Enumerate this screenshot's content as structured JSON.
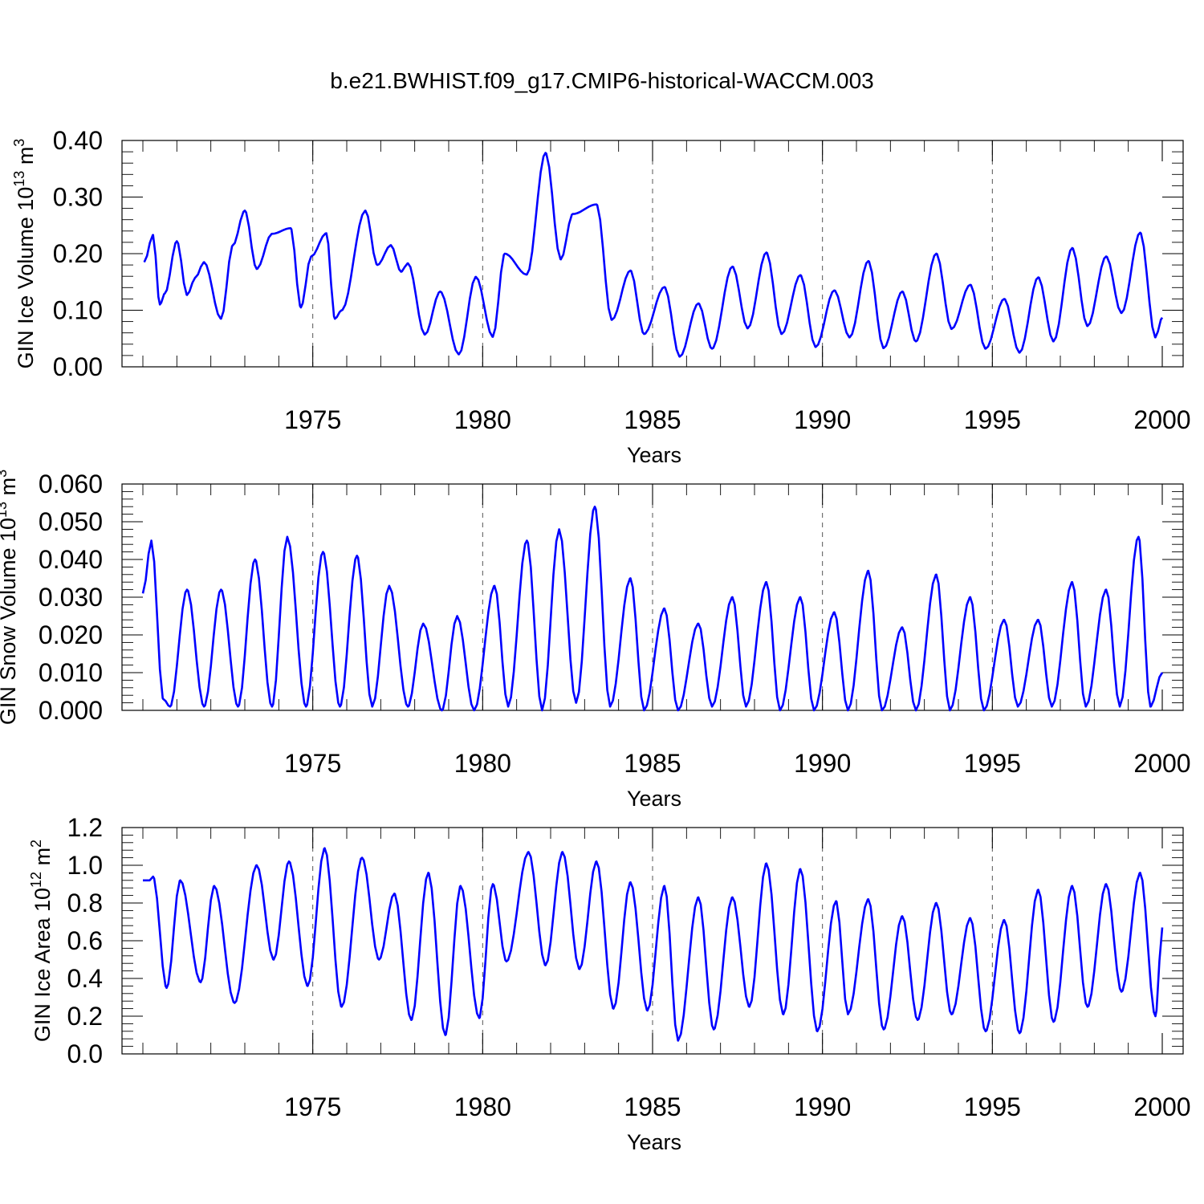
{
  "figure_title": "b.e21.BWHIST.f09_g17.CMIP6-historical-WACCM.003",
  "colors": {
    "series": "#0000ff",
    "grid": "#555555",
    "axes": "#000000"
  },
  "chart_data": [
    {
      "type": "line",
      "title": "b.e21.BWHIST.f09_g17.CMIP6-historical-WACCM.003",
      "xlabel": "Years",
      "ylabel": "GIN Ice Volume 10",
      "ylabel_exp": "13",
      "ylabel_unit": " m",
      "ylabel_unit_exp": "3",
      "xlim": [
        1970.0,
        2000.0
      ],
      "ylim": [
        0.0,
        0.4
      ],
      "x_ticks": [
        1975,
        1980,
        1985,
        1990,
        1995,
        2000
      ],
      "x_tick_labels": [
        "1975",
        "1980",
        "1985",
        "1990",
        "1995",
        "2000"
      ],
      "y_ticks": [
        0.0,
        0.1,
        0.2,
        0.3,
        0.4
      ],
      "y_tick_labels": [
        "0.00",
        "0.10",
        "0.20",
        "0.30",
        "0.40"
      ],
      "y_minor_step": 0.02,
      "grid": "dashed vertical lines at major x ticks",
      "series": [
        {
          "name": "GIN Ice Volume",
          "anchors_x": [
            1970.04,
            1970.3,
            1970.5,
            1970.65,
            1971.0,
            1971.3,
            1971.55,
            1971.8,
            1972.3,
            1972.65,
            1973.0,
            1973.35,
            1973.8,
            1974.35,
            1974.65,
            1974.95,
            1975.4,
            1975.65,
            1975.85,
            1976.55,
            1976.9,
            1977.3,
            1977.6,
            1977.8,
            1978.3,
            1978.75,
            1979.3,
            1979.8,
            1980.3,
            1980.65,
            1981.3,
            1981.85,
            1982.3,
            1982.65,
            1983.35,
            1983.8,
            1984.35,
            1984.75,
            1985.35,
            1985.8,
            1986.35,
            1986.75,
            1987.35,
            1987.8,
            1988.35,
            1988.8,
            1989.35,
            1989.8,
            1990.35,
            1990.8,
            1991.35,
            1991.8,
            1992.35,
            1992.75,
            1993.35,
            1993.8,
            1994.35,
            1994.8,
            1995.35,
            1995.8,
            1996.35,
            1996.8,
            1997.35,
            1997.8,
            1998.35,
            1998.8,
            1999.35,
            1999.8,
            2000.0
          ],
          "anchors_y": [
            0.185,
            0.233,
            0.11,
            0.13,
            0.222,
            0.127,
            0.158,
            0.185,
            0.085,
            0.215,
            0.276,
            0.173,
            0.235,
            0.245,
            0.105,
            0.195,
            0.236,
            0.085,
            0.1,
            0.276,
            0.18,
            0.215,
            0.168,
            0.183,
            0.057,
            0.133,
            0.022,
            0.159,
            0.053,
            0.2,
            0.163,
            0.378,
            0.19,
            0.27,
            0.287,
            0.083,
            0.17,
            0.058,
            0.141,
            0.018,
            0.112,
            0.032,
            0.177,
            0.068,
            0.202,
            0.058,
            0.162,
            0.035,
            0.135,
            0.052,
            0.187,
            0.033,
            0.133,
            0.045,
            0.2,
            0.067,
            0.145,
            0.032,
            0.12,
            0.025,
            0.158,
            0.045,
            0.21,
            0.072,
            0.195,
            0.095,
            0.237,
            0.052,
            0.087
          ]
        }
      ]
    },
    {
      "type": "line",
      "xlabel": "Years",
      "ylabel": "GIN Snow Volume 10",
      "ylabel_exp": "13",
      "ylabel_unit": " m",
      "ylabel_unit_exp": "3",
      "xlim": [
        1970.0,
        2000.0
      ],
      "ylim": [
        0.0,
        0.06
      ],
      "x_ticks": [
        1975,
        1980,
        1985,
        1990,
        1995,
        2000
      ],
      "x_tick_labels": [
        "1975",
        "1980",
        "1985",
        "1990",
        "1995",
        "2000"
      ],
      "y_ticks": [
        0.0,
        0.01,
        0.02,
        0.03,
        0.04,
        0.05,
        0.06
      ],
      "y_tick_labels": [
        "0.000",
        "0.010",
        "0.020",
        "0.030",
        "0.040",
        "0.050",
        "0.060"
      ],
      "y_minor_step": 0.002,
      "grid": "dashed vertical lines at major x ticks",
      "series": [
        {
          "name": "GIN Snow Volume",
          "anchors_x": [
            1970.0,
            1970.25,
            1970.6,
            1970.8,
            1971.3,
            1971.8,
            1972.3,
            1972.8,
            1973.3,
            1973.8,
            1974.25,
            1974.8,
            1975.3,
            1975.8,
            1976.3,
            1976.75,
            1977.25,
            1977.8,
            1978.25,
            1978.8,
            1979.25,
            1979.75,
            1980.35,
            1980.75,
            1981.3,
            1981.75,
            1982.25,
            1982.75,
            1983.3,
            1983.75,
            1984.35,
            1984.75,
            1985.35,
            1985.75,
            1986.35,
            1986.75,
            1987.35,
            1987.75,
            1988.35,
            1988.75,
            1989.35,
            1989.75,
            1990.35,
            1990.75,
            1991.35,
            1991.75,
            1992.35,
            1992.75,
            1993.35,
            1993.75,
            1994.35,
            1994.75,
            1995.35,
            1995.75,
            1996.35,
            1996.75,
            1997.35,
            1997.75,
            1998.35,
            1998.75,
            1999.3,
            1999.65,
            2000.0
          ],
          "anchors_y": [
            0.031,
            0.045,
            0.003,
            0.001,
            0.032,
            0.001,
            0.032,
            0.001,
            0.04,
            0.001,
            0.046,
            0.001,
            0.042,
            0.001,
            0.041,
            0.001,
            0.033,
            0.001,
            0.023,
            0.0,
            0.025,
            0.0,
            0.033,
            0.001,
            0.045,
            0.0,
            0.048,
            0.002,
            0.054,
            0.001,
            0.035,
            0.0,
            0.027,
            0.0,
            0.023,
            0.001,
            0.03,
            0.001,
            0.034,
            0.0,
            0.03,
            0.0,
            0.026,
            0.0,
            0.037,
            0.0,
            0.022,
            0.0,
            0.036,
            0.0,
            0.03,
            0.0,
            0.024,
            0.001,
            0.024,
            0.001,
            0.034,
            0.001,
            0.032,
            0.001,
            0.046,
            0.001,
            0.01
          ]
        }
      ]
    },
    {
      "type": "line",
      "xlabel": "Years",
      "ylabel": "GIN Ice Area 10",
      "ylabel_exp": "12",
      "ylabel_unit": " m",
      "ylabel_unit_exp": "2",
      "xlim": [
        1970.0,
        2000.0
      ],
      "ylim": [
        0.0,
        1.2
      ],
      "x_ticks": [
        1975,
        1980,
        1985,
        1990,
        1995,
        2000
      ],
      "x_tick_labels": [
        "1975",
        "1980",
        "1985",
        "1990",
        "1995",
        "2000"
      ],
      "y_ticks": [
        0.0,
        0.2,
        0.4,
        0.6,
        0.8,
        1.0,
        1.2
      ],
      "y_tick_labels": [
        "0.0",
        "0.2",
        "0.4",
        "0.6",
        "0.8",
        "1.0",
        "1.2"
      ],
      "y_minor_step": 0.04,
      "grid": "dashed vertical lines at major x ticks",
      "series": [
        {
          "name": "GIN Ice Area",
          "anchors_x": [
            1970.0,
            1970.2,
            1970.3,
            1970.7,
            1971.1,
            1971.7,
            1972.1,
            1972.7,
            1973.35,
            1973.85,
            1974.3,
            1974.85,
            1975.35,
            1975.85,
            1976.45,
            1976.95,
            1977.4,
            1977.9,
            1978.4,
            1978.9,
            1979.35,
            1979.9,
            1980.3,
            1980.7,
            1981.35,
            1981.85,
            1982.35,
            1982.85,
            1983.35,
            1983.85,
            1984.35,
            1984.85,
            1985.35,
            1985.75,
            1986.35,
            1986.8,
            1987.35,
            1987.85,
            1988.35,
            1988.85,
            1989.35,
            1989.85,
            1990.4,
            1990.75,
            1991.35,
            1991.8,
            1992.35,
            1992.8,
            1993.35,
            1993.8,
            1994.35,
            1994.8,
            1995.35,
            1995.8,
            1996.35,
            1996.8,
            1997.35,
            1997.8,
            1998.35,
            1998.8,
            1999.35,
            1999.8,
            2000.0
          ],
          "anchors_y": [
            0.92,
            0.92,
            0.94,
            0.35,
            0.92,
            0.38,
            0.89,
            0.27,
            1.0,
            0.5,
            1.02,
            0.36,
            1.09,
            0.25,
            1.04,
            0.5,
            0.85,
            0.18,
            0.96,
            0.1,
            0.89,
            0.19,
            0.9,
            0.49,
            1.07,
            0.47,
            1.07,
            0.45,
            1.02,
            0.24,
            0.91,
            0.23,
            0.89,
            0.07,
            0.83,
            0.13,
            0.83,
            0.25,
            1.01,
            0.21,
            0.98,
            0.12,
            0.81,
            0.21,
            0.82,
            0.13,
            0.73,
            0.18,
            0.8,
            0.21,
            0.72,
            0.12,
            0.71,
            0.11,
            0.87,
            0.17,
            0.89,
            0.25,
            0.9,
            0.33,
            0.96,
            0.2,
            0.67
          ]
        }
      ]
    }
  ]
}
